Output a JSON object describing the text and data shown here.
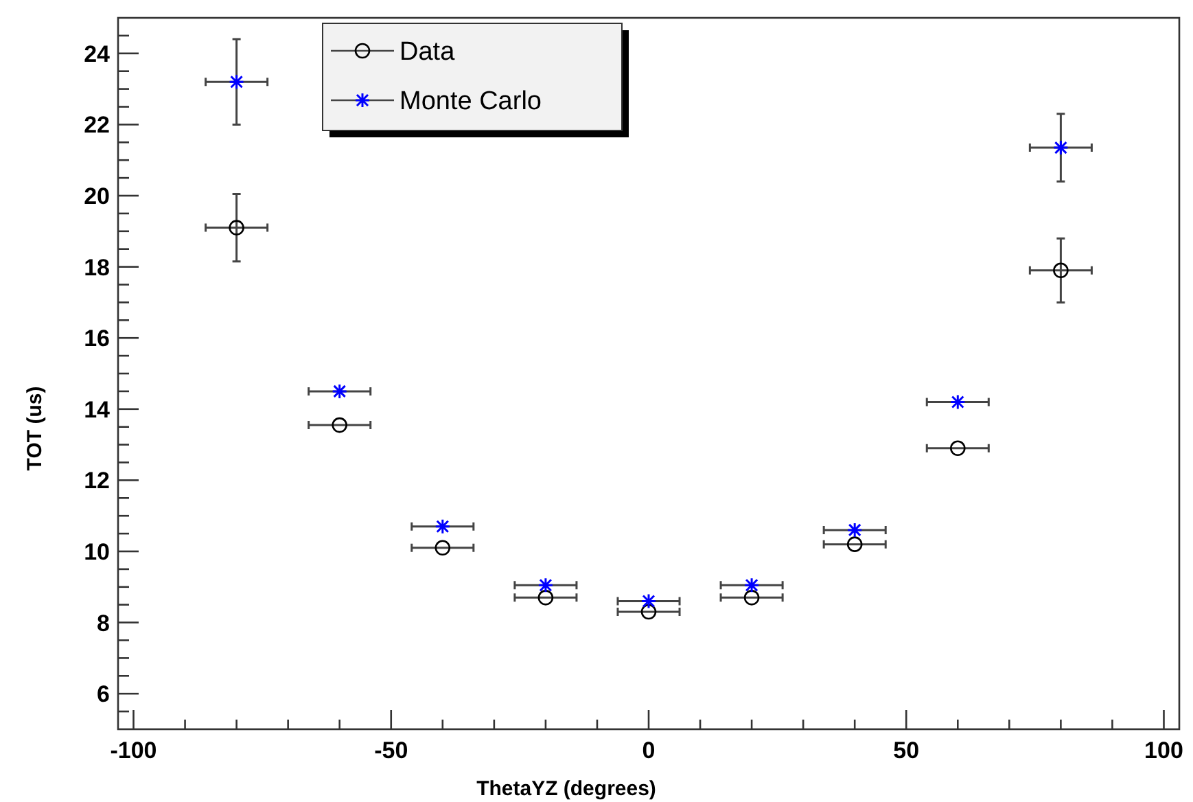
{
  "chart_data": {
    "type": "scatter",
    "xlabel": "ThetaYZ (degrees)",
    "ylabel": "TOT (us)",
    "xlim": [
      -103,
      103
    ],
    "ylim": [
      5,
      25
    ],
    "xticks": [
      -100,
      -50,
      0,
      50,
      100
    ],
    "yticks": [
      6,
      8,
      10,
      12,
      14,
      16,
      18,
      20,
      22,
      24
    ],
    "grid": false,
    "legend": "top left",
    "x": [
      -80,
      -60,
      -40,
      -20,
      0,
      20,
      40,
      60,
      80
    ],
    "series": [
      {
        "name": "Data",
        "color": "#000000",
        "marker": "circle",
        "values": [
          19.1,
          13.55,
          10.1,
          8.7,
          8.3,
          8.7,
          10.2,
          12.9,
          17.9
        ],
        "errors": [
          0.95,
          null,
          null,
          null,
          null,
          null,
          null,
          null,
          0.9
        ],
        "xerrors": [
          6,
          6,
          6,
          6,
          6,
          6,
          6,
          6,
          6
        ]
      },
      {
        "name": "Monte Carlo",
        "color": "#0000ff",
        "marker": "cross",
        "values": [
          23.2,
          14.5,
          10.7,
          9.05,
          8.6,
          9.05,
          10.6,
          14.2,
          21.35
        ],
        "errors": [
          1.2,
          null,
          null,
          null,
          null,
          null,
          null,
          null,
          0.95
        ],
        "xerrors": [
          6,
          6,
          6,
          6,
          6,
          6,
          6,
          6,
          6
        ]
      }
    ]
  }
}
